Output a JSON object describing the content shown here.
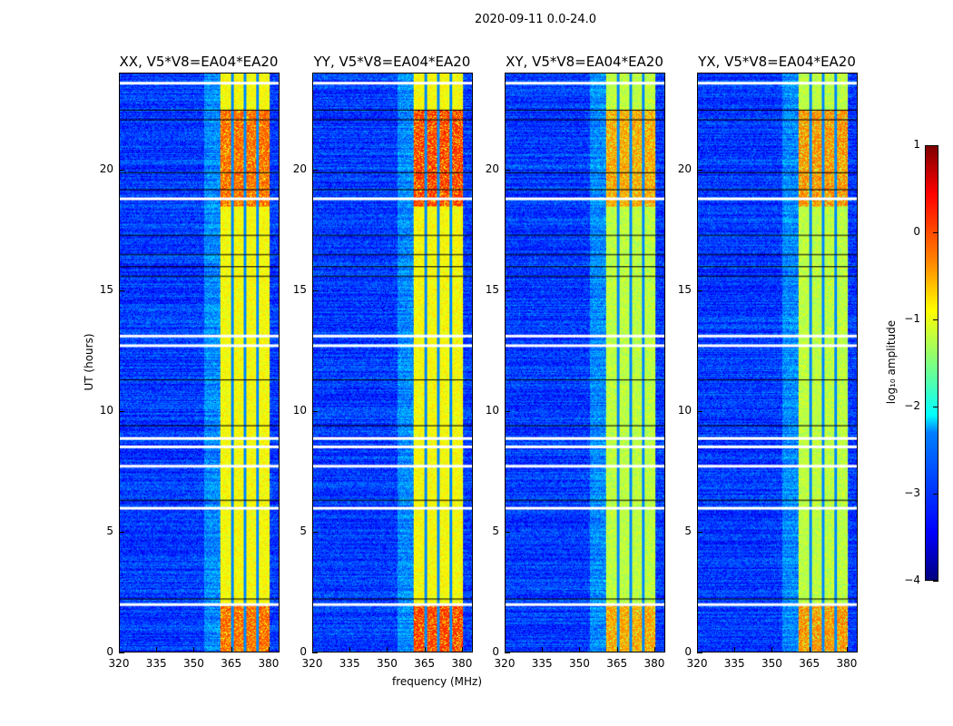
{
  "chart_data": {
    "type": "heatmap",
    "title": "2020-09-11 0.0-24.0",
    "xlabel": "frequency (MHz)",
    "ylabel": "UT (hours)",
    "xlim": [
      320,
      384.4
    ],
    "ylim": [
      0,
      24
    ],
    "xticks": [
      "320",
      "335",
      "350",
      "365",
      "380"
    ],
    "yticks": [
      "0",
      "5",
      "10",
      "15",
      "20"
    ],
    "panels": [
      {
        "title": "XX, V5*V8=EA04*EA20",
        "band_level": -0.9,
        "hot_level": -0.1
      },
      {
        "title": "YY, V5*V8=EA04*EA20",
        "band_level": -0.9,
        "hot_level": 0.1
      },
      {
        "title": "XY, V5*V8=EA04*EA20",
        "band_level": -1.2,
        "hot_level": -0.4
      },
      {
        "title": "YX, V5*V8=EA04*EA20",
        "band_level": -1.2,
        "hot_level": -0.3
      }
    ],
    "rfi_band_mhz": [
      360.7,
      380.4
    ],
    "rfi_gaps_mhz": [
      365.5,
      370.5,
      375.6
    ],
    "background_level": -3.1,
    "flagged_hours_white": [
      1.95,
      5.95,
      7.7,
      8.85,
      8.5,
      18.8,
      23.6,
      13.1,
      12.7
    ],
    "flagged_hours_black": [
      2.2,
      6.3,
      9.4,
      11.3,
      15.6,
      16.0,
      16.5,
      17.3,
      19.2,
      19.9,
      22.1,
      22.5
    ],
    "hot_hours": [
      [
        0,
        2
      ],
      [
        18.5,
        22.5
      ]
    ],
    "colorbar": {
      "label": "log₁₀ amplitude",
      "range": [
        -4,
        1
      ],
      "ticks": [
        "1",
        "0",
        "−1",
        "−2",
        "−3",
        "−4"
      ],
      "colormap": "jet"
    }
  }
}
